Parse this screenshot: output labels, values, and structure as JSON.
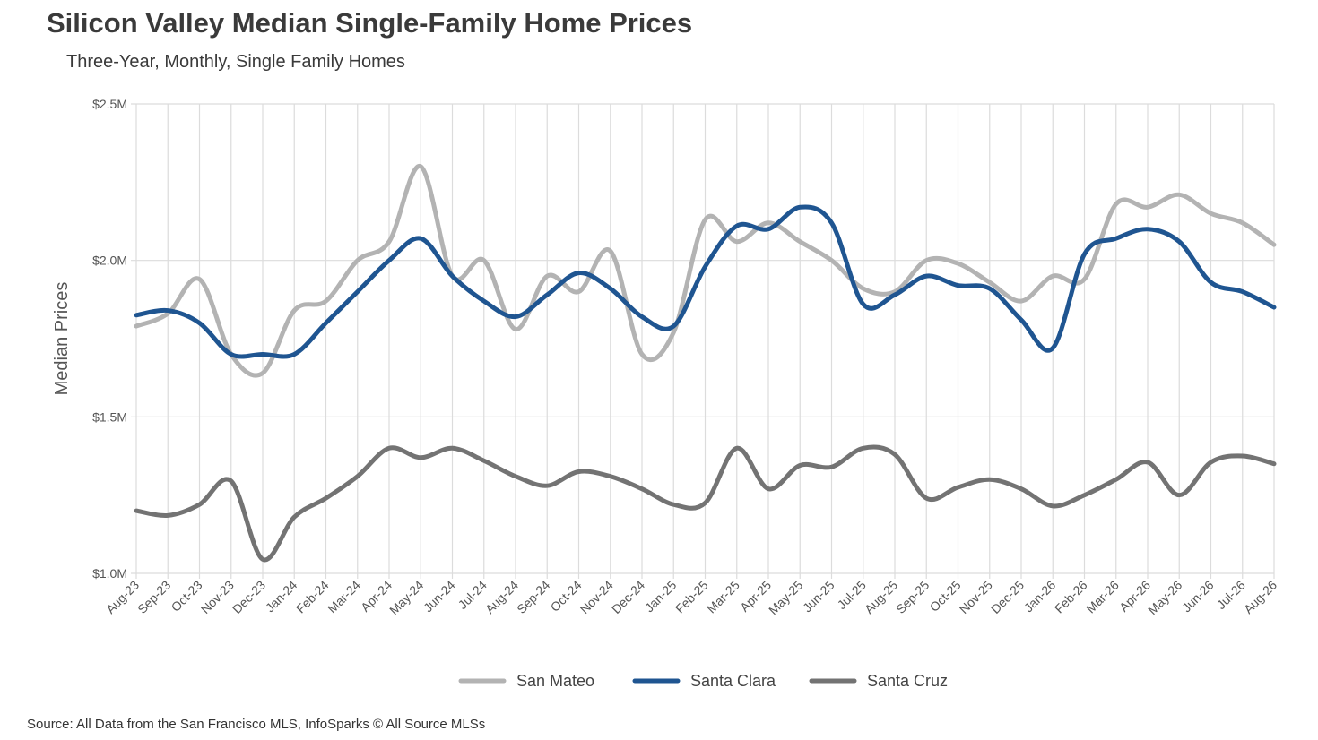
{
  "chart_data": {
    "type": "line",
    "title": "Silicon Valley Median Single-Family Home Prices",
    "subtitle": "Three-Year, Monthly, Single Family Homes",
    "ylabel": "Median Prices",
    "xlabel": "",
    "ylim": [
      1000000,
      2500000
    ],
    "yticks": [
      1000000,
      1500000,
      2000000,
      2500000
    ],
    "ytick_labels": [
      "$1.0M",
      "$1.5M",
      "$2.0M",
      "$2.5M"
    ],
    "grid": true,
    "legend_position": "bottom-center",
    "categories": [
      "Aug-23",
      "Sep-23",
      "Oct-23",
      "Nov-23",
      "Dec-23",
      "Jan-24",
      "Feb-24",
      "Mar-24",
      "Apr-24",
      "May-24",
      "Jun-24",
      "Jul-24",
      "Aug-24",
      "Sep-24",
      "Oct-24",
      "Nov-24",
      "Dec-24",
      "Jan-25",
      "Feb-25",
      "Mar-25",
      "Apr-25",
      "May-25",
      "Jun-25",
      "Jul-25",
      "Aug-25",
      "Sep-25",
      "Oct-25",
      "Nov-25",
      "Dec-25",
      "Jan-26",
      "Feb-26",
      "Mar-26",
      "Apr-26",
      "May-26",
      "Jun-26",
      "Jul-26",
      "Aug-26"
    ],
    "series": [
      {
        "name": "San Mateo",
        "color": "#b3b3b3",
        "values": [
          1790000,
          1830000,
          1940000,
          1700000,
          1640000,
          1840000,
          1870000,
          2000000,
          2060000,
          2300000,
          1950000,
          2000000,
          1780000,
          1950000,
          1900000,
          2030000,
          1700000,
          1770000,
          2130000,
          2060000,
          2120000,
          2060000,
          2000000,
          1910000,
          1900000,
          2000000,
          1990000,
          1930000,
          1870000,
          1950000,
          1940000,
          2180000,
          2170000,
          2210000,
          2150000,
          2120000,
          2050000
        ]
      },
      {
        "name": "Santa Clara",
        "color": "#1f5591",
        "values": [
          1825000,
          1840000,
          1800000,
          1700000,
          1700000,
          1700000,
          1800000,
          1900000,
          2000000,
          2070000,
          1950000,
          1870000,
          1820000,
          1890000,
          1960000,
          1910000,
          1820000,
          1790000,
          1980000,
          2110000,
          2100000,
          2170000,
          2120000,
          1860000,
          1890000,
          1950000,
          1920000,
          1910000,
          1810000,
          1720000,
          2020000,
          2070000,
          2100000,
          2060000,
          1930000,
          1900000,
          1850000
        ]
      },
      {
        "name": "Santa Cruz",
        "color": "#737373",
        "values": [
          1200000,
          1185000,
          1220000,
          1295000,
          1045000,
          1180000,
          1240000,
          1310000,
          1400000,
          1370000,
          1400000,
          1360000,
          1310000,
          1280000,
          1325000,
          1310000,
          1270000,
          1220000,
          1225000,
          1400000,
          1270000,
          1345000,
          1340000,
          1400000,
          1380000,
          1240000,
          1275000,
          1300000,
          1270000,
          1215000,
          1250000,
          1300000,
          1355000,
          1250000,
          1355000,
          1375000,
          1350000
        ]
      }
    ]
  },
  "source": "Source: All Data from the San Francisco MLS, InfoSparks © All Source MLSs"
}
